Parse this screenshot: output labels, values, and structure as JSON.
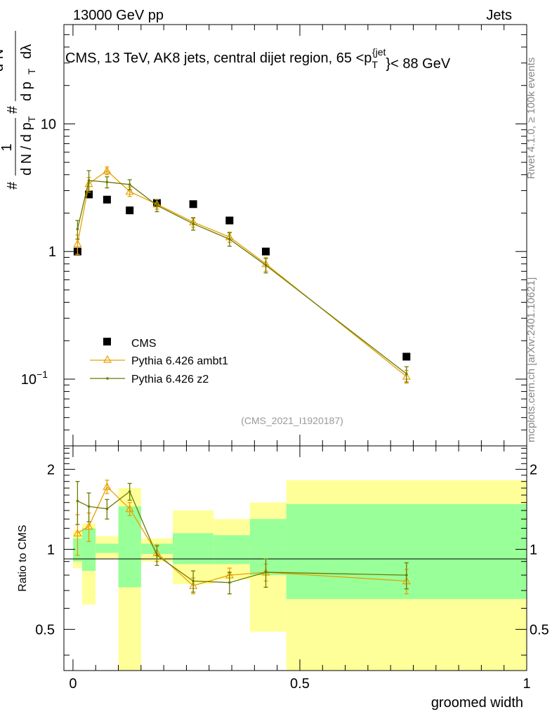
{
  "header": {
    "left": "13000 GeV pp",
    "right": "Jets"
  },
  "side_labels": {
    "rivet": "Rivet 4.1.0, ≥ 100k events",
    "mcplots": "mcplots.cern.ch [arXiv:2401.10621]"
  },
  "colors": {
    "cms": "#000000",
    "ambt1": "#e8a000",
    "z2": "#6b7a00",
    "band_outer": "#ffff99",
    "band_inner": "#99ff99"
  },
  "chart_data": [
    {
      "type": "scatter",
      "panel": "main",
      "title": "CMS, 13 TeV, AK8 jets, central dijet region, 65 <p_T^{jet}< 88 GeV",
      "title_parts": {
        "before": "CMS, 13 TeV, AK8 jets, central dijet region, 65 <p",
        "sub": "T",
        "sup": "{jet",
        "after": "}< 88 GeV"
      },
      "ylabel": "1/dN/dp_T d^2N/dp_T dλ",
      "ylabel_parts": {
        "hash": "#",
        "one": "1",
        "dn": "d N / d p",
        "t": "T",
        "num": "d²N",
        "den": "d p",
        "dl": "dλ"
      },
      "yscale": "log",
      "ylim": [
        0.03,
        60
      ],
      "xlim": [
        -0.02,
        1.0
      ],
      "yticks": [
        {
          "v": 10,
          "base": "10",
          "exp": ""
        },
        {
          "v": 1,
          "base": "1",
          "exp": ""
        },
        {
          "v": 0.1,
          "base": "10",
          "exp": "−1"
        }
      ],
      "watermark": "(CMS_2021_I1920187)",
      "legend": [
        {
          "key": "cms",
          "label": "CMS"
        },
        {
          "key": "ambt1",
          "label": "Pythia 6.426 ambt1"
        },
        {
          "key": "z2",
          "label": "Pythia 6.426 z2"
        }
      ],
      "series": [
        {
          "key": "cms",
          "name": "CMS",
          "x": [
            0.01,
            0.035,
            0.075,
            0.125,
            0.185,
            0.265,
            0.345,
            0.425,
            0.735
          ],
          "values": [
            1.0,
            2.8,
            2.55,
            2.1,
            2.4,
            2.35,
            1.75,
            1.0,
            0.15
          ]
        },
        {
          "key": "ambt1",
          "name": "Pythia 6.426 ambt1",
          "x": [
            0.01,
            0.035,
            0.075,
            0.125,
            0.185,
            0.265,
            0.345,
            0.425,
            0.735
          ],
          "values": [
            1.15,
            3.4,
            4.3,
            2.95,
            2.35,
            1.7,
            1.3,
            0.8,
            0.105
          ],
          "err": [
            0.2,
            0.4,
            0.3,
            0.25,
            0.2,
            0.15,
            0.12,
            0.1,
            0.012
          ]
        },
        {
          "key": "z2",
          "name": "Pythia 6.426 z2",
          "x": [
            0.01,
            0.035,
            0.075,
            0.125,
            0.185,
            0.265,
            0.345,
            0.425,
            0.735
          ],
          "values": [
            1.5,
            3.6,
            3.5,
            3.35,
            2.3,
            1.65,
            1.25,
            0.78,
            0.11
          ],
          "err": [
            0.25,
            0.7,
            0.35,
            0.3,
            0.25,
            0.18,
            0.15,
            0.1,
            0.015
          ]
        }
      ]
    },
    {
      "type": "line",
      "panel": "ratio",
      "ylabel": "Ratio to CMS",
      "xlabel": "groomed width",
      "yscale": "log",
      "ylim": [
        0.35,
        2.45
      ],
      "xlim": [
        -0.02,
        1.0
      ],
      "xticks": [
        {
          "v": 0,
          "label": "0"
        },
        {
          "v": 0.5,
          "label": "0.5"
        },
        {
          "v": 1,
          "label": "1"
        }
      ],
      "yticks": [
        {
          "v": 2,
          "label": "2"
        },
        {
          "v": 1,
          "label": "1"
        },
        {
          "v": 0.5,
          "label": "0.5"
        }
      ],
      "bands": [
        {
          "x0": 0.0,
          "x1": 0.02,
          "inner": [
            0.9,
            1.1
          ],
          "outer": [
            0.85,
            1.18
          ]
        },
        {
          "x0": 0.02,
          "x1": 0.05,
          "inner": [
            0.83,
            1.2
          ],
          "outer": [
            0.62,
            1.25
          ]
        },
        {
          "x0": 0.05,
          "x1": 0.1,
          "inner": [
            0.97,
            1.05
          ],
          "outer": [
            0.92,
            1.12
          ]
        },
        {
          "x0": 0.1,
          "x1": 0.15,
          "inner": [
            0.72,
            1.45
          ],
          "outer": [
            0.3,
            1.7
          ]
        },
        {
          "x0": 0.15,
          "x1": 0.22,
          "inner": [
            0.96,
            1.05
          ],
          "outer": [
            0.9,
            1.1
          ]
        },
        {
          "x0": 0.22,
          "x1": 0.31,
          "inner": [
            0.88,
            1.15
          ],
          "outer": [
            0.74,
            1.4
          ]
        },
        {
          "x0": 0.31,
          "x1": 0.39,
          "inner": [
            0.88,
            1.13
          ],
          "outer": [
            0.77,
            1.3
          ]
        },
        {
          "x0": 0.39,
          "x1": 0.47,
          "inner": [
            0.8,
            1.3
          ],
          "outer": [
            0.49,
            1.5
          ]
        },
        {
          "x0": 0.47,
          "x1": 1.0,
          "inner": [
            0.65,
            1.48
          ],
          "outer": [
            0.3,
            1.82
          ]
        }
      ],
      "series": [
        {
          "key": "ambt1",
          "name": "Pythia 6.426 ambt1",
          "x": [
            0.01,
            0.035,
            0.075,
            0.125,
            0.185,
            0.265,
            0.345,
            0.425,
            0.735
          ],
          "values": [
            1.15,
            1.22,
            1.72,
            1.42,
            0.97,
            0.73,
            0.8,
            0.82,
            0.76
          ],
          "err": [
            0.2,
            0.15,
            0.1,
            0.08,
            0.07,
            0.05,
            0.05,
            0.06,
            0.08
          ]
        },
        {
          "key": "z2",
          "name": "Pythia 6.426 z2",
          "x": [
            0.01,
            0.035,
            0.075,
            0.125,
            0.185,
            0.265,
            0.345,
            0.425,
            0.735
          ],
          "values": [
            1.52,
            1.45,
            1.42,
            1.65,
            0.95,
            0.76,
            0.75,
            0.82,
            0.8
          ],
          "err": [
            0.28,
            0.18,
            0.12,
            0.12,
            0.08,
            0.07,
            0.07,
            0.1,
            0.09
          ]
        }
      ]
    }
  ]
}
